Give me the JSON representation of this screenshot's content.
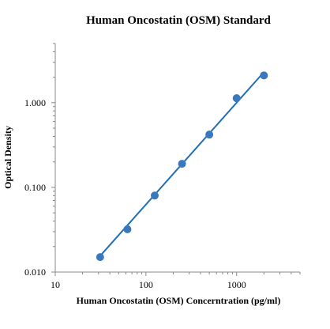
{
  "chart_data": {
    "type": "scatter",
    "title": "Human Oncostatin (OSM) Standard",
    "xlabel": "Human Oncostatin (OSM) Concerntration (pg/ml)",
    "ylabel": "Optical Density",
    "x_scale": "log",
    "y_scale": "log",
    "xlim": [
      10,
      5000
    ],
    "ylim": [
      0.01,
      5
    ],
    "x_tick_values": [
      10,
      100,
      1000
    ],
    "x_tick_labels": [
      "10",
      "100",
      "1000"
    ],
    "y_tick_values": [
      0.01,
      0.1,
      1
    ],
    "y_tick_labels": [
      "0.010",
      "0.100",
      "1.000"
    ],
    "grid": false,
    "legend": "none",
    "series": [
      {
        "x": [
          31.25,
          62.5,
          125,
          250,
          500,
          1000,
          2000
        ],
        "y": [
          0.015,
          0.032,
          0.08,
          0.19,
          0.42,
          1.13,
          2.1
        ],
        "marker_color": "#3a78be",
        "line_color": "#1f6fb5",
        "trendline": {
          "type": "power",
          "x_range": [
            31.25,
            2000
          ],
          "y_range": [
            0.0155,
            2.3
          ]
        }
      }
    ]
  }
}
